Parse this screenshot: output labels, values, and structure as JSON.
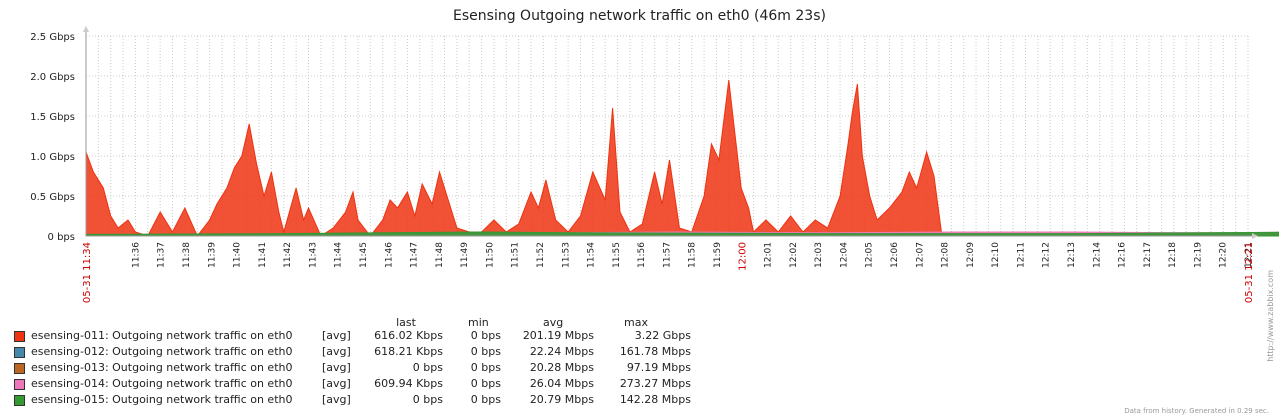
{
  "chart_data": {
    "type": "area",
    "title": "Esensing Outgoing network traffic on eth0 (46m 23s)",
    "y_unit": "Gbps",
    "ylim": [
      0,
      2.5
    ],
    "y_ticks": [
      {
        "value": 0,
        "label": "0 bps"
      },
      {
        "value": 0.5,
        "label": "0.5 Gbps"
      },
      {
        "value": 1.0,
        "label": "1.0 Gbps"
      },
      {
        "value": 1.5,
        "label": "1.5 Gbps"
      },
      {
        "value": 2.0,
        "label": "2.0 Gbps"
      },
      {
        "value": 2.5,
        "label": "2.5 Gbps"
      }
    ],
    "x_start_label": "05-31 11:34",
    "x_end_label": "05-31 12:21",
    "x_ticks": [
      "11:36",
      "11:37",
      "11:38",
      "11:39",
      "11:40",
      "11:41",
      "11:42",
      "11:43",
      "11:44",
      "11:45",
      "11:46",
      "11:47",
      "11:48",
      "11:49",
      "11:50",
      "11:51",
      "11:52",
      "11:53",
      "11:54",
      "11:55",
      "11:56",
      "11:57",
      "11:58",
      "11:59",
      "12:00",
      "12:01",
      "12:02",
      "12:03",
      "12:04",
      "12:05",
      "12:06",
      "12:07",
      "12:08",
      "12:09",
      "12:10",
      "12:11",
      "12:12",
      "12:13",
      "12:14",
      "12:16",
      "12:17",
      "12:18",
      "12:19",
      "12:20",
      "12:21"
    ],
    "highlight_ticks": [
      "12:00"
    ],
    "grid": true,
    "legend_position": "bottom-left",
    "series": [
      {
        "name": "esensing-011: Outgoing network traffic on eth0",
        "color": "#EE3311",
        "func": "[avg]",
        "last": "616.02 Kbps",
        "min": "0 bps",
        "avg": "201.19 Mbps",
        "max": "3.22 Gbps",
        "points": [
          [
            0,
            1.05
          ],
          [
            0.3,
            0.8
          ],
          [
            0.7,
            0.6
          ],
          [
            1,
            0.25
          ],
          [
            1.3,
            0.1
          ],
          [
            1.7,
            0.2
          ],
          [
            2,
            0.05
          ],
          [
            2.5,
            0.0
          ],
          [
            3,
            0.3
          ],
          [
            3.5,
            0.05
          ],
          [
            4,
            0.35
          ],
          [
            4.5,
            0.0
          ],
          [
            5,
            0.2
          ],
          [
            5.3,
            0.4
          ],
          [
            5.7,
            0.6
          ],
          [
            6,
            0.85
          ],
          [
            6.3,
            1.0
          ],
          [
            6.6,
            1.4
          ],
          [
            6.9,
            0.9
          ],
          [
            7.2,
            0.5
          ],
          [
            7.5,
            0.8
          ],
          [
            7.8,
            0.3
          ],
          [
            8,
            0.05
          ],
          [
            8.5,
            0.6
          ],
          [
            8.8,
            0.2
          ],
          [
            9,
            0.35
          ],
          [
            9.5,
            0.0
          ],
          [
            10,
            0.1
          ],
          [
            10.5,
            0.3
          ],
          [
            10.8,
            0.55
          ],
          [
            11,
            0.2
          ],
          [
            11.5,
            0.0
          ],
          [
            12,
            0.2
          ],
          [
            12.3,
            0.45
          ],
          [
            12.6,
            0.35
          ],
          [
            13,
            0.55
          ],
          [
            13.3,
            0.25
          ],
          [
            13.6,
            0.65
          ],
          [
            14,
            0.4
          ],
          [
            14.3,
            0.8
          ],
          [
            14.6,
            0.5
          ],
          [
            15,
            0.1
          ],
          [
            15.5,
            0.05
          ],
          [
            16,
            0.05
          ],
          [
            16.5,
            0.2
          ],
          [
            17,
            0.05
          ],
          [
            17.5,
            0.15
          ],
          [
            18,
            0.55
          ],
          [
            18.3,
            0.35
          ],
          [
            18.6,
            0.7
          ],
          [
            19,
            0.2
          ],
          [
            19.5,
            0.05
          ],
          [
            20,
            0.25
          ],
          [
            20.5,
            0.8
          ],
          [
            21,
            0.45
          ],
          [
            21.3,
            1.6
          ],
          [
            21.6,
            0.3
          ],
          [
            22,
            0.05
          ],
          [
            22.5,
            0.15
          ],
          [
            23,
            0.8
          ],
          [
            23.3,
            0.4
          ],
          [
            23.6,
            0.95
          ],
          [
            24,
            0.1
          ],
          [
            24.5,
            0.05
          ],
          [
            25,
            0.5
          ],
          [
            25.3,
            1.15
          ],
          [
            25.6,
            0.95
          ],
          [
            26,
            1.95
          ],
          [
            26.2,
            1.4
          ],
          [
            26.5,
            0.6
          ],
          [
            26.8,
            0.35
          ],
          [
            27,
            0.05
          ],
          [
            27.5,
            0.2
          ],
          [
            28,
            0.05
          ],
          [
            28.5,
            0.25
          ],
          [
            29,
            0.05
          ],
          [
            29.5,
            0.2
          ],
          [
            30,
            0.1
          ],
          [
            30.5,
            0.5
          ],
          [
            30.8,
            1.1
          ],
          [
            31,
            1.55
          ],
          [
            31.2,
            1.9
          ],
          [
            31.4,
            1.0
          ],
          [
            31.7,
            0.5
          ],
          [
            32,
            0.2
          ],
          [
            32.5,
            0.35
          ],
          [
            33,
            0.55
          ],
          [
            33.3,
            0.8
          ],
          [
            33.6,
            0.6
          ],
          [
            34,
            1.05
          ],
          [
            34.3,
            0.75
          ],
          [
            34.6,
            0.05
          ],
          [
            35,
            0.0
          ]
        ]
      },
      {
        "name": "esensing-012: Outgoing network traffic on eth0",
        "color": "#4488AA",
        "func": "[avg]",
        "last": "618.21 Kbps",
        "min": "0 bps",
        "avg": "22.24 Mbps",
        "max": "161.78 Mbps",
        "points": [
          [
            0,
            0.01
          ],
          [
            10,
            0.02
          ],
          [
            20,
            0.02
          ],
          [
            30,
            0.03
          ],
          [
            35,
            0.03
          ],
          [
            40,
            0.02
          ],
          [
            45,
            0.02
          ],
          [
            50,
            0.02
          ],
          [
            54,
            0.03
          ],
          [
            55,
            0.0
          ]
        ]
      },
      {
        "name": "esensing-013: Outgoing network traffic on eth0",
        "color": "#BB6622",
        "func": "[avg]",
        "last": "0 bps",
        "min": "0 bps",
        "avg": "20.28 Mbps",
        "max": "97.19 Mbps",
        "points": [
          [
            0,
            0.01
          ],
          [
            10,
            0.02
          ],
          [
            20,
            0.02
          ],
          [
            30,
            0.02
          ],
          [
            35,
            0.02
          ],
          [
            45,
            0.02
          ],
          [
            51,
            0.02
          ],
          [
            52,
            0.0
          ]
        ]
      },
      {
        "name": "esensing-014: Outgoing network traffic on eth0",
        "color": "#EE77BB",
        "func": "[avg]",
        "last": "609.94 Kbps",
        "min": "0 bps",
        "avg": "26.04 Mbps",
        "max": "273.27 Mbps",
        "points": [
          [
            0,
            0.01
          ],
          [
            14,
            0.03
          ],
          [
            24,
            0.05
          ],
          [
            30,
            0.04
          ],
          [
            35,
            0.05
          ],
          [
            40,
            0.05
          ],
          [
            45,
            0.04
          ],
          [
            50,
            0.05
          ],
          [
            55,
            0.04
          ],
          [
            56,
            0.0
          ]
        ]
      },
      {
        "name": "esensing-015: Outgoing network traffic on eth0",
        "color": "#339933",
        "func": "[avg]",
        "last": "0 bps",
        "min": "0 bps",
        "avg": "20.79 Mbps",
        "max": "142.28 Mbps",
        "points": [
          [
            0,
            0.02
          ],
          [
            8,
            0.03
          ],
          [
            12,
            0.04
          ],
          [
            16,
            0.05
          ],
          [
            20,
            0.04
          ],
          [
            30,
            0.03
          ],
          [
            40,
            0.03
          ],
          [
            50,
            0.05
          ],
          [
            51,
            0.06
          ],
          [
            52,
            0.0
          ]
        ]
      }
    ]
  },
  "legend_headers": {
    "last": "last",
    "min": "min",
    "avg": "avg",
    "max": "max"
  },
  "side_note": "http://www.zabbix.com",
  "footer": "Data from history. Generated in 0.29 sec."
}
